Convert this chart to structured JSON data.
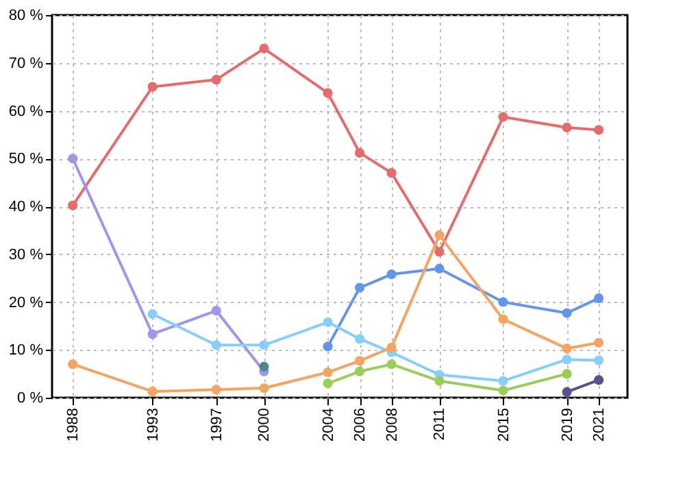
{
  "chart_data": {
    "type": "line",
    "x": [
      1988,
      1993,
      1997,
      2000,
      2004,
      2006,
      2008,
      2011,
      2015,
      2019,
      2021
    ],
    "series": [
      {
        "color": "#e46c6c",
        "values": [
          40.2,
          65,
          66.5,
          73,
          63.7,
          51.2,
          47,
          30.5,
          58.7,
          56.5,
          56
        ]
      },
      {
        "color": "#9f94ee",
        "values": [
          50,
          13.3,
          18.2,
          5.5,
          null,
          null,
          null,
          null,
          null,
          null,
          null
        ]
      },
      {
        "color": "#4a8a8a",
        "values": [
          null,
          null,
          null,
          6.5,
          null,
          null,
          null,
          null,
          null,
          null,
          null
        ]
      },
      {
        "color": "#6495ed",
        "values": [
          null,
          null,
          null,
          null,
          10.7,
          23,
          25.8,
          27,
          20,
          17.7,
          20.8
        ]
      },
      {
        "color": "#87cefa",
        "values": [
          null,
          17.5,
          11,
          11,
          15.8,
          12.3,
          9.5,
          4.8,
          3.5,
          8,
          7.8
        ]
      },
      {
        "color": "#9acd5a",
        "values": [
          null,
          null,
          null,
          null,
          3,
          5.5,
          7,
          3.5,
          1.5,
          5,
          null
        ]
      },
      {
        "color": "#f4a460",
        "values": [
          7,
          1.3,
          1.7,
          2,
          5.3,
          7.7,
          10.5,
          34,
          16.4,
          10.3,
          11.5
        ]
      },
      {
        "color": "#5e4f8e",
        "values": [
          null,
          null,
          null,
          null,
          null,
          null,
          null,
          null,
          null,
          1.2,
          3.7
        ]
      }
    ],
    "xlim": [
      1986.7,
      2022.8
    ],
    "xticks": [
      1988,
      1993,
      1997,
      2000,
      2004,
      2006,
      2008,
      2011,
      2015,
      2019,
      2021
    ],
    "ylim": [
      0,
      80
    ],
    "yticks": [
      {
        "value": 0,
        "label": "0 %"
      },
      {
        "value": 10,
        "label": "10 %"
      },
      {
        "value": 20,
        "label": "20 %"
      },
      {
        "value": 30,
        "label": "30 %"
      },
      {
        "value": 40,
        "label": "40 %"
      },
      {
        "value": 50,
        "label": "50 %"
      },
      {
        "value": 60,
        "label": "60 %"
      },
      {
        "value": 70,
        "label": "70 %"
      },
      {
        "value": 80,
        "label": "80 %"
      }
    ],
    "grid": true,
    "marker": "circle",
    "line_style": "solid"
  }
}
